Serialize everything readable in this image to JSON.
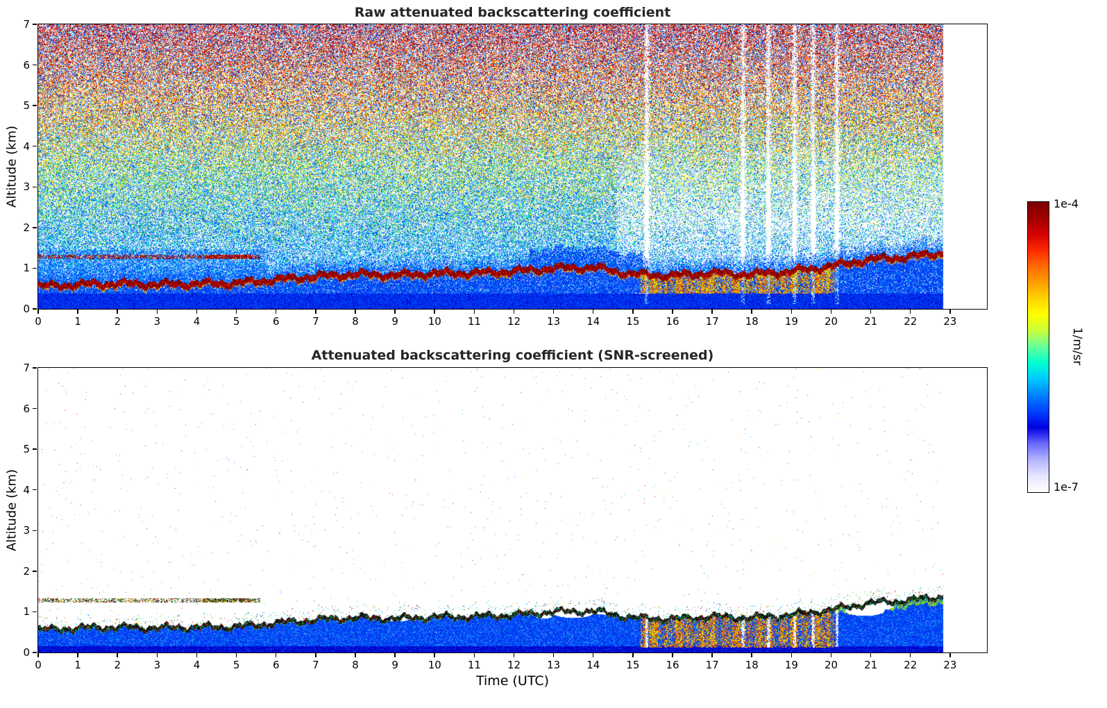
{
  "figure": {
    "background": "#ffffff"
  },
  "colorbar": {
    "max_label": "1e-4",
    "min_label": "1e-7",
    "unit": "1/m/sr",
    "value_max": 0.0001,
    "value_min": 1e-07,
    "stops": [
      "#7a0000",
      "#a00000",
      "#d40000",
      "#ff2a00",
      "#ff6a00",
      "#ff9e00",
      "#ffd400",
      "#ffff00",
      "#c8ff3c",
      "#64ff9b",
      "#00ffd0",
      "#00c8ff",
      "#0080ff",
      "#0040ff",
      "#0000e0",
      "#6a6aff",
      "#b4b4ff",
      "#e6e6ff",
      "#ffffff"
    ]
  },
  "render_palette": {
    "white": "#ffffff",
    "blue1": "#0033ee",
    "blue2": "#0055ff",
    "blue3": "#2b7bff",
    "blue4": "#0000c8",
    "lblue": "#6fb0ff",
    "cyan": "#00ccee",
    "tealgreen": "#00e0b0",
    "green": "#2fcc3a",
    "ygreen": "#aadd00",
    "yellow": "#ffec00",
    "orange": "#ff9c00",
    "orangered": "#ff5400",
    "red": "#ea1200",
    "darkred": "#8b0000",
    "maroon": "#750000",
    "black": "#111111"
  },
  "chart_data": [
    {
      "type": "heatmap",
      "variant": "raw",
      "title": "Raw attenuated backscattering coefficient",
      "xlabel": "",
      "ylabel": "Altitude (km)",
      "x_axis_range": [
        0,
        23.93
      ],
      "y_axis_range": [
        0,
        7
      ],
      "x_ticks": [
        0,
        1,
        2,
        3,
        4,
        5,
        6,
        7,
        8,
        9,
        10,
        11,
        12,
        13,
        14,
        15,
        16,
        17,
        18,
        19,
        20,
        21,
        22,
        23
      ],
      "y_ticks": [
        0,
        1,
        2,
        3,
        4,
        5,
        6,
        7
      ],
      "data_end_utc": 22.83,
      "value_scale": "log",
      "value_min": 1e-07,
      "value_max": 0.0001,
      "boundary_layer_height_km": [
        0.55,
        0.6,
        0.62,
        0.6,
        0.62,
        0.63,
        0.72,
        0.8,
        0.85,
        0.83,
        0.87,
        0.88,
        0.92,
        1.0,
        1.02,
        0.85,
        0.82,
        0.88,
        0.85,
        0.92,
        1.05,
        1.22,
        1.28,
        1.4,
        1.45
      ],
      "residual_layer": {
        "t_start": 0,
        "t_end": 5.6,
        "altitude_km": 1.28
      },
      "convective_period_utc": [
        15.2,
        20.1
      ],
      "low_signal_gaps_utc": [
        15.35,
        17.78,
        18.42,
        19.08,
        19.55,
        20.15
      ]
    },
    {
      "type": "heatmap",
      "variant": "screened",
      "title": "Attenuated backscattering coefficient (SNR-screened)",
      "xlabel": "Time (UTC)",
      "ylabel": "Altitude (km)",
      "x_axis_range": [
        0,
        23.93
      ],
      "y_axis_range": [
        0,
        7
      ],
      "x_ticks": [
        0,
        1,
        2,
        3,
        4,
        5,
        6,
        7,
        8,
        9,
        10,
        11,
        12,
        13,
        14,
        15,
        16,
        17,
        18,
        19,
        20,
        21,
        22,
        23
      ],
      "y_ticks": [
        0,
        1,
        2,
        3,
        4,
        5,
        6,
        7
      ],
      "data_end_utc": 22.83,
      "value_scale": "log",
      "value_min": 1e-07,
      "value_max": 0.0001,
      "boundary_layer_height_km": [
        0.55,
        0.6,
        0.62,
        0.6,
        0.62,
        0.63,
        0.72,
        0.8,
        0.85,
        0.83,
        0.87,
        0.88,
        0.92,
        1.0,
        1.02,
        0.85,
        0.82,
        0.88,
        0.85,
        0.92,
        1.05,
        1.22,
        1.28,
        1.4,
        1.45
      ],
      "residual_layer": {
        "t_start": 0,
        "t_end": 5.6,
        "altitude_km": 1.28
      },
      "convective_period_utc": [
        15.2,
        20.1
      ],
      "low_signal_gaps_utc": [
        15.35,
        17.78,
        18.42,
        19.08,
        19.55,
        20.15
      ],
      "clear_patches": [
        {
          "t": 13.5,
          "alt": 0.97,
          "rt": 0.5,
          "ra": 0.12
        },
        {
          "t": 14.3,
          "alt": 1.03,
          "rt": 0.38,
          "ra": 0.1
        },
        {
          "t": 12.75,
          "alt": 0.9,
          "rt": 0.22,
          "ra": 0.07
        },
        {
          "t": 20.85,
          "alt": 1.03,
          "rt": 0.5,
          "ra": 0.13
        },
        {
          "t": 21.3,
          "alt": 1.15,
          "rt": 0.28,
          "ra": 0.1
        },
        {
          "t": 9.05,
          "alt": 0.82,
          "rt": 0.3,
          "ra": 0.06
        },
        {
          "t": 10.6,
          "alt": 0.9,
          "rt": 0.25,
          "ra": 0.06
        }
      ]
    }
  ]
}
